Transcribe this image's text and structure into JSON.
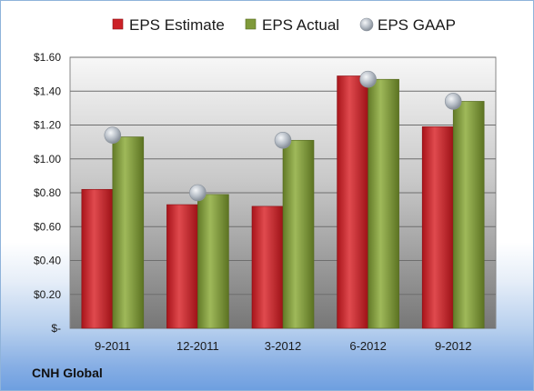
{
  "chart_data": {
    "type": "bar",
    "categories": [
      "9-2011",
      "12-2011",
      "3-2012",
      "6-2012",
      "9-2012"
    ],
    "series": [
      {
        "name": "EPS Estimate",
        "values": [
          0.82,
          0.73,
          0.72,
          1.49,
          1.19
        ],
        "color": "#cc2127",
        "kind": "bar"
      },
      {
        "name": "EPS Actual",
        "values": [
          1.13,
          0.79,
          1.11,
          1.47,
          1.34
        ],
        "color": "#7f9a3a",
        "kind": "bar"
      },
      {
        "name": "EPS GAAP",
        "values": [
          1.14,
          0.8,
          1.11,
          1.47,
          1.34
        ],
        "color": "#a9b2bd",
        "kind": "marker"
      }
    ],
    "ylim": [
      0,
      1.6
    ],
    "yticks": [
      "$-",
      "$0.20",
      "$0.40",
      "$0.60",
      "$0.80",
      "$1.00",
      "$1.20",
      "$1.40",
      "$1.60"
    ],
    "ytick_values": [
      0,
      0.2,
      0.4,
      0.6,
      0.8,
      1.0,
      1.2,
      1.4,
      1.6
    ],
    "grid": true,
    "legend_position": "top",
    "title": "",
    "xlabel": "",
    "ylabel": ""
  },
  "footer": {
    "company": "CNH Global"
  }
}
